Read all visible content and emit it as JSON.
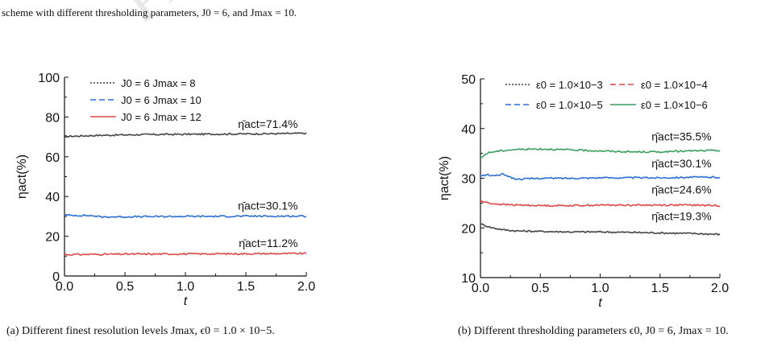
{
  "top_caption": {
    "line1": "",
    "line2_prefix": "scheme with different thresholding parameters,",
    "line2_j0": "J0 = 6, and Jmax = 10."
  },
  "watermark_text": "Preprint",
  "chart_data": [
    {
      "type": "line",
      "caption": "(a) Different finest resolution levels Jmax, ϵ0 = 1.0 × 10−5.",
      "xlabel": "t",
      "ylabel": "ηact(%)",
      "xlim": [
        0.0,
        2.0
      ],
      "ylim": [
        0,
        100
      ],
      "xticks": [
        "0.0",
        "0.5",
        "1.0",
        "1.5",
        "2.0"
      ],
      "yticks": [
        "0",
        "20",
        "40",
        "60",
        "80",
        "100"
      ],
      "legend_placement": "top-left",
      "series": [
        {
          "name": "J0 = 6 Jmax = 8",
          "color": "#444444",
          "dash": "dotted",
          "x": [
            0.0,
            0.1,
            0.2,
            0.3,
            0.5,
            0.75,
            1.0,
            1.25,
            1.5,
            1.75,
            2.0
          ],
          "y": [
            70.2,
            70.4,
            70.6,
            70.8,
            71.0,
            71.2,
            71.3,
            71.4,
            71.5,
            71.6,
            71.8
          ]
        },
        {
          "name": "J0 = 6 Jmax = 10",
          "color": "#2b6fd6",
          "dash": "dashed",
          "x": [
            0.0,
            0.1,
            0.2,
            0.25,
            0.3,
            0.5,
            0.75,
            1.0,
            1.25,
            1.5,
            1.75,
            2.0
          ],
          "y": [
            30.6,
            30.5,
            30.4,
            30.2,
            29.7,
            29.8,
            29.9,
            30.0,
            30.0,
            30.1,
            30.1,
            30.1
          ]
        },
        {
          "name": "J0 = 6 Jmax = 12",
          "color": "#e04848",
          "dash": "solid",
          "x": [
            0.0,
            0.5,
            1.0,
            1.5,
            2.0
          ],
          "y": [
            10.8,
            11.0,
            11.1,
            11.2,
            11.3
          ]
        }
      ],
      "annotations": [
        {
          "text": "η̄act=71.4%",
          "x": 1.93,
          "y": 74.5
        },
        {
          "text": "η̄act=30.1%",
          "x": 1.93,
          "y": 33.5
        },
        {
          "text": "η̄act=11.2%",
          "x": 1.93,
          "y": 14.5
        }
      ]
    },
    {
      "type": "line",
      "caption": "(b) Different thresholding parameters ϵ0, J0 = 6, Jmax = 10.",
      "xlabel": "t",
      "ylabel": "ηact(%)",
      "xlim": [
        0.0,
        2.0
      ],
      "ylim": [
        10,
        50
      ],
      "xticks": [
        "0.0",
        "0.5",
        "1.0",
        "1.5",
        "2.0"
      ],
      "yticks": [
        "10",
        "20",
        "30",
        "40",
        "50"
      ],
      "legend_placement": "top",
      "series": [
        {
          "name": "ε0 = 1.0×10−3",
          "color": "#444444",
          "dash": "dotted",
          "x": [
            0.0,
            0.05,
            0.1,
            0.2,
            0.3,
            0.5,
            0.75,
            1.0,
            1.25,
            1.5,
            1.75,
            2.0
          ],
          "y": [
            20.8,
            20.4,
            20.0,
            19.6,
            19.4,
            19.3,
            19.2,
            19.2,
            19.1,
            19.0,
            18.9,
            18.7
          ]
        },
        {
          "name": "ε0 = 1.0×10−4",
          "color": "#e04848",
          "dash": "dashed",
          "x": [
            0.0,
            0.05,
            0.1,
            0.2,
            0.3,
            0.5,
            0.75,
            1.0,
            1.25,
            1.5,
            1.75,
            2.0
          ],
          "y": [
            25.4,
            25.1,
            24.9,
            24.7,
            24.6,
            24.5,
            24.5,
            24.6,
            24.6,
            24.6,
            24.6,
            24.5
          ]
        },
        {
          "name": "ε0 = 1.0×10−5",
          "color": "#2b6fd6",
          "dash": "dashed",
          "x": [
            0.0,
            0.05,
            0.1,
            0.2,
            0.25,
            0.3,
            0.5,
            0.75,
            1.0,
            1.25,
            1.5,
            1.75,
            2.0
          ],
          "y": [
            30.4,
            30.7,
            30.5,
            30.8,
            30.2,
            29.8,
            30.0,
            30.0,
            30.1,
            30.1,
            30.1,
            30.2,
            30.2
          ]
        },
        {
          "name": "ε0 = 1.0×10−6",
          "color": "#3a9e5f",
          "dash": "solid",
          "x": [
            0.0,
            0.05,
            0.1,
            0.2,
            0.3,
            0.5,
            0.75,
            1.0,
            1.25,
            1.5,
            1.75,
            2.0
          ],
          "y": [
            34.0,
            35.0,
            35.3,
            35.6,
            35.8,
            35.9,
            35.7,
            35.5,
            35.3,
            35.3,
            35.5,
            35.6
          ]
        }
      ],
      "annotations": [
        {
          "text": "η̄act=35.5%",
          "x": 1.93,
          "y": 37.6
        },
        {
          "text": "η̄act=30.1%",
          "x": 1.93,
          "y": 32.2
        },
        {
          "text": "η̄act=24.6%",
          "x": 1.93,
          "y": 26.9
        },
        {
          "text": "η̄act=19.3%",
          "x": 1.93,
          "y": 21.6
        }
      ]
    }
  ]
}
